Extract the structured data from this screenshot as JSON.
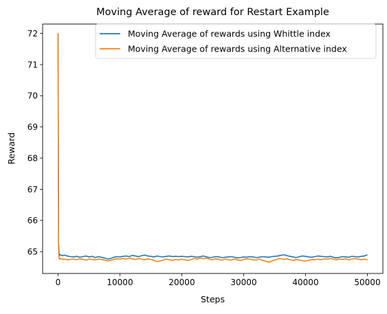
{
  "chart_data": {
    "type": "line",
    "title": "Moving Average of reward for Restart Example",
    "xlabel": "Steps",
    "ylabel": "Reward",
    "xlim": [
      -2500,
      52500
    ],
    "ylim": [
      64.3,
      72.3
    ],
    "xticks": [
      0,
      10000,
      20000,
      30000,
      40000,
      50000
    ],
    "yticks": [
      65,
      66,
      67,
      68,
      69,
      70,
      71,
      72
    ],
    "grid": false,
    "legend_position": "top-right",
    "series": [
      {
        "name": "Moving Average of rewards using Whittle index",
        "color": "#1f77b4",
        "x": [
          0,
          80,
          160,
          250,
          400,
          700,
          1000,
          1500,
          2000,
          2500,
          3000,
          3500,
          4000,
          4500,
          5000,
          5500,
          6000,
          6500,
          7000,
          7500,
          8000,
          8500,
          9000,
          9500,
          10000,
          10500,
          11000,
          11500,
          12000,
          12500,
          13000,
          13500,
          14000,
          14500,
          15000,
          15500,
          16000,
          16500,
          17000,
          17500,
          18000,
          18500,
          19000,
          19500,
          20000,
          20500,
          21000,
          21500,
          22000,
          22500,
          23000,
          23500,
          24000,
          24500,
          25000,
          25500,
          26000,
          26500,
          27000,
          27500,
          28000,
          28500,
          29000,
          29500,
          30000,
          30500,
          31000,
          31500,
          32000,
          32500,
          33000,
          33500,
          34000,
          34500,
          35000,
          35500,
          36000,
          36500,
          37000,
          37500,
          38000,
          38500,
          39000,
          39500,
          40000,
          40500,
          41000,
          41500,
          42000,
          42500,
          43000,
          43500,
          44000,
          44500,
          45000,
          45500,
          46000,
          46500,
          47000,
          47500,
          48000,
          48500,
          49000,
          49500,
          50000
        ],
        "y": [
          72.0,
          65.3,
          64.95,
          64.88,
          64.9,
          64.87,
          64.89,
          64.86,
          64.84,
          64.83,
          64.85,
          64.82,
          64.84,
          64.86,
          64.83,
          64.85,
          64.81,
          64.84,
          64.82,
          64.8,
          64.76,
          64.78,
          64.82,
          64.84,
          64.83,
          64.85,
          64.86,
          64.84,
          64.88,
          64.86,
          64.84,
          64.87,
          64.89,
          64.86,
          64.85,
          64.83,
          64.86,
          64.84,
          64.83,
          64.85,
          64.86,
          64.84,
          64.85,
          64.84,
          64.85,
          64.84,
          64.83,
          64.85,
          64.84,
          64.82,
          64.84,
          64.86,
          64.83,
          64.81,
          64.82,
          64.84,
          64.83,
          64.81,
          64.82,
          64.83,
          64.84,
          64.82,
          64.8,
          64.81,
          64.83,
          64.82,
          64.84,
          64.83,
          64.81,
          64.82,
          64.84,
          64.83,
          64.82,
          64.84,
          64.85,
          64.86,
          64.88,
          64.9,
          64.87,
          64.85,
          64.83,
          64.81,
          64.84,
          64.86,
          64.85,
          64.83,
          64.82,
          64.84,
          64.86,
          64.85,
          64.84,
          64.83,
          64.85,
          64.82,
          64.8,
          64.82,
          64.84,
          64.83,
          64.82,
          64.85,
          64.84,
          64.83,
          64.85,
          64.86,
          64.9
        ]
      },
      {
        "name": "Moving Average of rewards using Alternative index",
        "color": "#ff7f0e",
        "x": [
          0,
          80,
          160,
          250,
          400,
          700,
          1000,
          1500,
          2000,
          2500,
          3000,
          3500,
          4000,
          4500,
          5000,
          5500,
          6000,
          6500,
          7000,
          7500,
          8000,
          8500,
          9000,
          9500,
          10000,
          10500,
          11000,
          11500,
          12000,
          12500,
          13000,
          13500,
          14000,
          14500,
          15000,
          15500,
          16000,
          16500,
          17000,
          17500,
          18000,
          18500,
          19000,
          19500,
          20000,
          20500,
          21000,
          21500,
          22000,
          22500,
          23000,
          23500,
          24000,
          24500,
          25000,
          25500,
          26000,
          26500,
          27000,
          27500,
          28000,
          28500,
          29000,
          29500,
          30000,
          30500,
          31000,
          31500,
          32000,
          32500,
          33000,
          33500,
          34000,
          34500,
          35000,
          35500,
          36000,
          36500,
          37000,
          37500,
          38000,
          38500,
          39000,
          39500,
          40000,
          40500,
          41000,
          41500,
          42000,
          42500,
          43000,
          43500,
          44000,
          44500,
          45000,
          45500,
          46000,
          46500,
          47000,
          47500,
          48000,
          48500,
          49000,
          49500,
          50000
        ],
        "y": [
          72.0,
          65.1,
          64.8,
          64.76,
          64.78,
          64.75,
          64.76,
          64.74,
          64.75,
          64.76,
          64.74,
          64.77,
          64.75,
          64.73,
          64.76,
          64.75,
          64.74,
          64.76,
          64.75,
          64.73,
          64.7,
          64.72,
          64.75,
          64.77,
          64.76,
          64.78,
          64.76,
          64.79,
          64.77,
          64.75,
          64.78,
          64.76,
          64.74,
          64.77,
          64.75,
          64.72,
          64.68,
          64.7,
          64.73,
          64.76,
          64.74,
          64.72,
          64.75,
          64.73,
          64.76,
          64.74,
          64.72,
          64.75,
          64.78,
          64.76,
          64.8,
          64.77,
          64.79,
          64.76,
          64.74,
          64.77,
          64.75,
          64.73,
          64.76,
          64.74,
          64.73,
          64.76,
          64.74,
          64.72,
          64.75,
          64.77,
          64.76,
          64.74,
          64.73,
          64.76,
          64.72,
          64.7,
          64.66,
          64.69,
          64.73,
          64.76,
          64.78,
          64.75,
          64.77,
          64.74,
          64.72,
          64.75,
          64.73,
          64.71,
          64.7,
          64.72,
          64.75,
          64.74,
          64.76,
          64.74,
          64.77,
          64.76,
          64.78,
          64.76,
          64.74,
          64.76,
          64.75,
          64.77,
          64.74,
          64.76,
          64.78,
          64.76,
          64.74,
          64.76,
          64.73
        ]
      }
    ]
  }
}
